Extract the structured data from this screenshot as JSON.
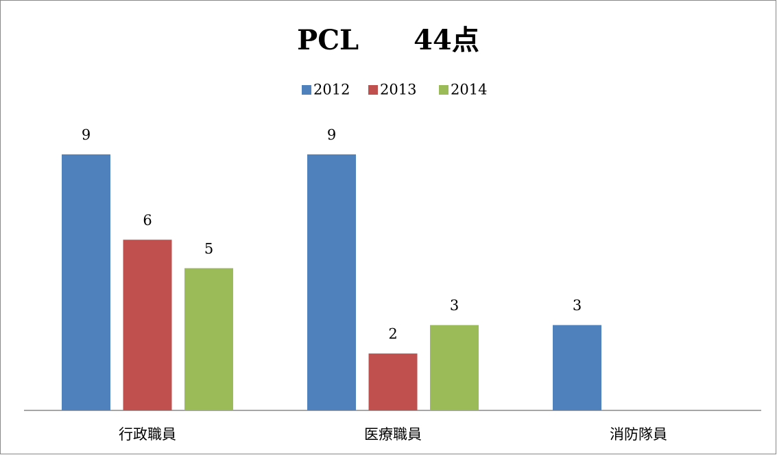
{
  "chart_data": {
    "type": "bar",
    "title": "PCL　　44点",
    "categories": [
      "行政職員",
      "医療職員",
      "消防隊員"
    ],
    "series": [
      {
        "name": "2012",
        "color": "#4f81bd",
        "values": [
          9,
          9,
          3
        ]
      },
      {
        "name": "2013",
        "color": "#c0504d",
        "values": [
          6,
          2,
          null
        ]
      },
      {
        "name": "2014",
        "color": "#9bbb59",
        "values": [
          5,
          3,
          null
        ]
      }
    ]
  }
}
